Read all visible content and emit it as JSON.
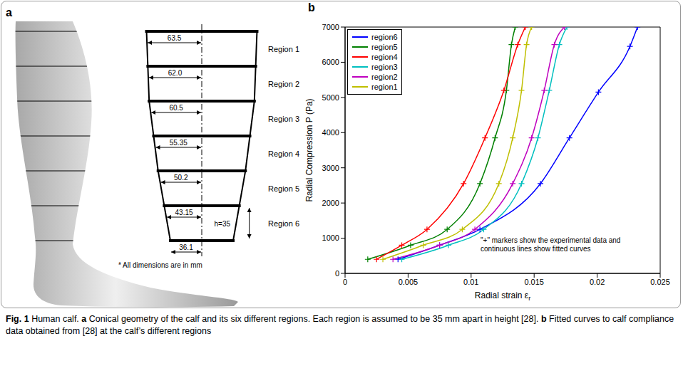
{
  "panel_a": {
    "letter": "a",
    "radii": [
      63.5,
      {
        "value": 62,
        "label": "62.0"
      },
      60.5,
      55.35,
      50.2,
      43.15,
      36.1
    ],
    "regions": [
      "Region 1",
      "Region 2",
      "Region 3",
      "Region 4",
      "Region 5",
      "Region 6"
    ],
    "height": {
      "value": 35,
      "label": "h=35"
    },
    "note": "* All dimensions are in mm"
  },
  "panel_b": {
    "letter": "b"
  },
  "chart_data": {
    "type": "line",
    "xlabel": "Radial strain ε",
    "xlabel_subscript": "r",
    "ylabel": "Radial Compression P (Pa)",
    "annotation": "\"+\" markers show the experimental data and continuous lines show fitted curves",
    "xlim": [
      0,
      0.025
    ],
    "xticks": [
      0,
      0.005,
      0.01,
      0.015,
      0.02,
      0.025
    ],
    "ylim": [
      0,
      7000
    ],
    "yticks": [
      0,
      1000,
      2000,
      3000,
      4000,
      5000,
      6000,
      7000
    ],
    "grid": false,
    "legend": "upper left",
    "series": [
      {
        "name": "region6",
        "color": "#0000ff",
        "marker": "plus",
        "line_style": "solid",
        "x": [
          0.0042,
          0.0075,
          0.0107,
          0.0155,
          0.0178,
          0.0201,
          0.0226,
          0.0232
        ],
        "values": [
          400,
          800,
          1250,
          2550,
          3850,
          5150,
          6450,
          7000
        ]
      },
      {
        "name": "region5",
        "color": "#008000",
        "marker": "plus",
        "line_style": "solid",
        "x": [
          0.0018,
          0.0052,
          0.0081,
          0.0107,
          0.0119,
          0.0128,
          0.0132,
          0.0135
        ],
        "values": [
          400,
          800,
          1250,
          2550,
          3850,
          5200,
          6500,
          7000
        ]
      },
      {
        "name": "region4",
        "color": "#ff0000",
        "marker": "plus",
        "line_style": "solid",
        "x": [
          0.0025,
          0.0045,
          0.0065,
          0.0094,
          0.0111,
          0.0126,
          0.0137,
          0.0143
        ],
        "values": [
          400,
          800,
          1250,
          2550,
          3850,
          5200,
          6500,
          7000
        ]
      },
      {
        "name": "region3",
        "color": "#00bfbf",
        "marker": "plus",
        "line_style": "solid",
        "x": [
          0.0045,
          0.0082,
          0.011,
          0.014,
          0.0153,
          0.0162,
          0.017,
          0.0176
        ],
        "values": [
          400,
          800,
          1250,
          2550,
          3850,
          5200,
          6500,
          7000
        ]
      },
      {
        "name": "region2",
        "color": "#bf00bf",
        "marker": "plus",
        "line_style": "solid",
        "x": [
          0.0038,
          0.0075,
          0.0103,
          0.0133,
          0.0148,
          0.0158,
          0.0166,
          0.0174
        ],
        "values": [
          400,
          800,
          1250,
          2550,
          3850,
          5200,
          6500,
          7000
        ]
      },
      {
        "name": "region1",
        "color": "#bfbf00",
        "marker": "plus",
        "line_style": "solid",
        "x": [
          0.003,
          0.0062,
          0.0093,
          0.0122,
          0.0133,
          0.014,
          0.0144,
          0.0148
        ],
        "values": [
          400,
          800,
          1250,
          2550,
          3850,
          5200,
          6500,
          7000
        ]
      }
    ]
  },
  "caption": {
    "label": "Fig. 1",
    "intro": "Human calf.",
    "items": [
      {
        "letter": "a",
        "text": "Conical geometry of the calf and its six different regions. Each region is assumed to be 35 mm apart in height [28]."
      },
      {
        "letter": "b",
        "text": "Fitted curves to calf compliance data obtained from [28] at the calf’s different regions"
      }
    ]
  }
}
